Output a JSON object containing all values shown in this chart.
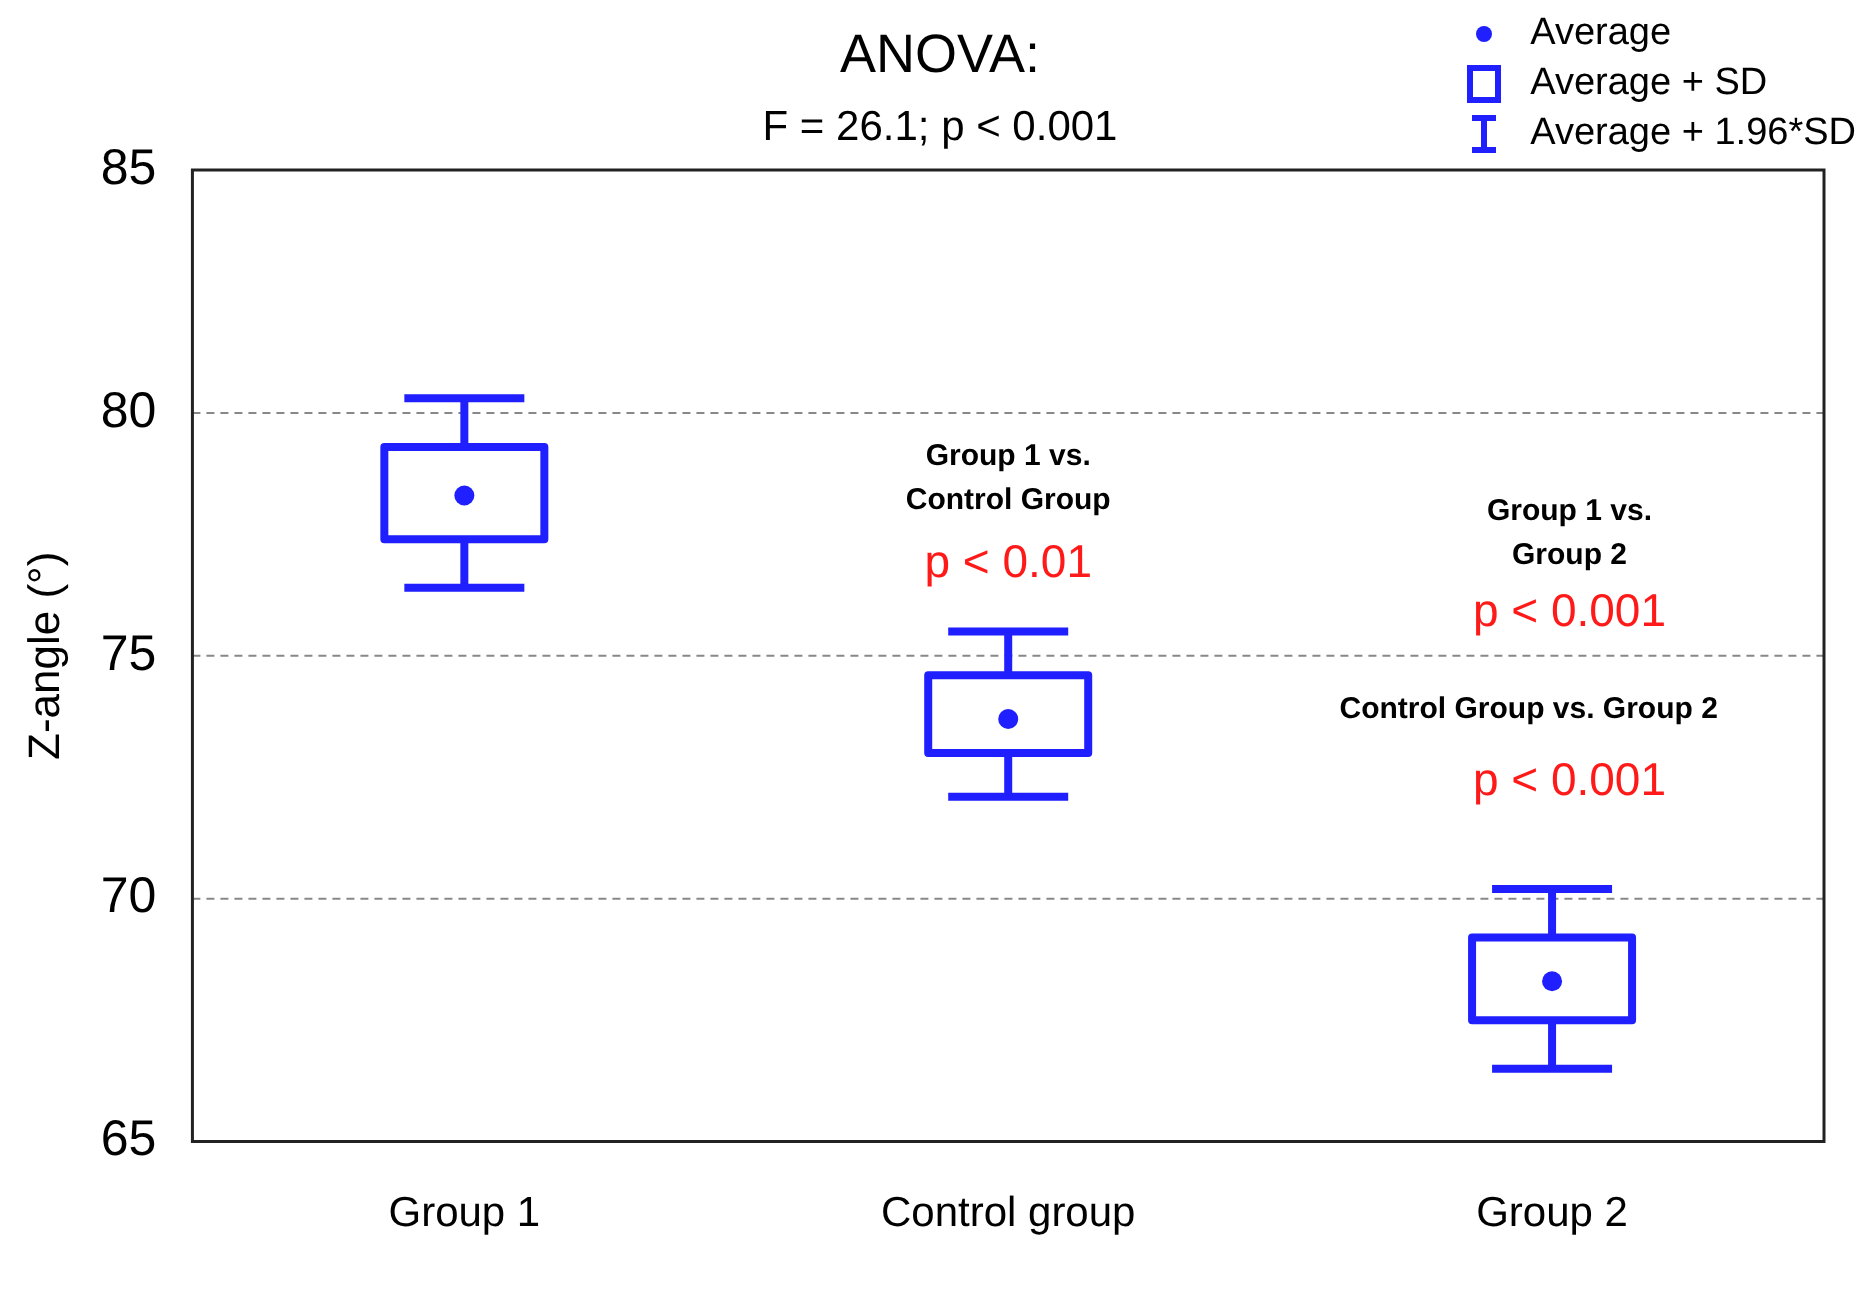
{
  "chart_data": {
    "type": "box",
    "title": "ANOVA:",
    "subtitle": "F = 26.1; p < 0.001",
    "ylabel": "Z-angle (°)",
    "categories": [
      "Group 1",
      "Control group",
      "Group 2"
    ],
    "color": "#1f1fff",
    "boxes": [
      {
        "low": 76.4,
        "q1": 77.4,
        "median": 78.3,
        "q3": 79.3,
        "high": 80.3
      },
      {
        "low": 72.1,
        "q1": 73.0,
        "median": 73.7,
        "q3": 74.6,
        "high": 75.5
      },
      {
        "low": 66.5,
        "q1": 67.5,
        "median": 68.3,
        "q3": 69.2,
        "high": 70.2
      }
    ],
    "ylim": [
      65,
      85
    ],
    "yticks": [
      65,
      70,
      75,
      80,
      85
    ],
    "grid": "y",
    "annotations": [
      "Average",
      "Average + SD",
      "Average + 1.96*SD",
      "Group 1 vs.\nControl Group",
      "p < 0.01",
      "Group 1 vs.\nGroup 2",
      "p < 0.001",
      "Control Group vs. Group 2",
      "p < 0.001"
    ]
  }
}
